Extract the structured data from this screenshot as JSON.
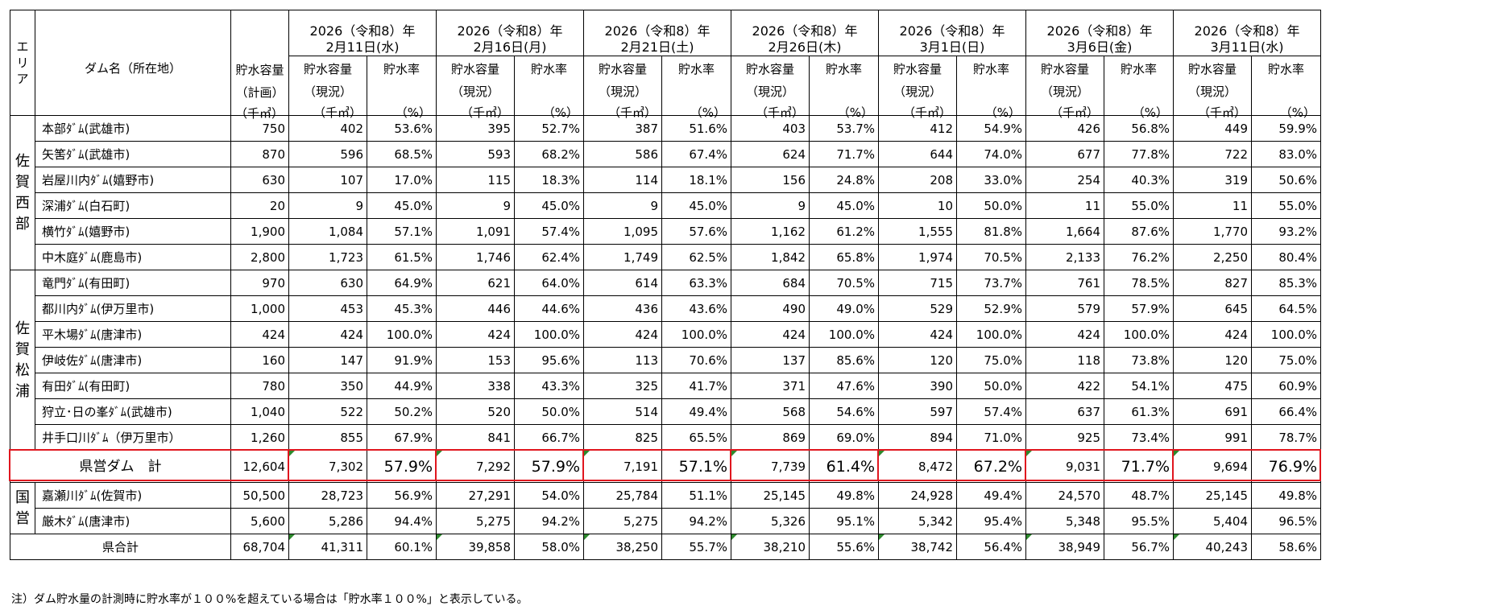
{
  "header": {
    "area": "エリア",
    "dam_name": "ダム名（所在地）",
    "plan_capacity": [
      "貯水容量",
      "（計画）",
      "（千㎥）"
    ],
    "current_capacity": [
      "貯水容量",
      "（現況）",
      "（千㎥）"
    ],
    "rate": [
      "貯水率",
      "（%）"
    ],
    "dates": [
      {
        "year": "2026（令和8）年",
        "day": "2月11日(水)"
      },
      {
        "year": "2026（令和8）年",
        "day": "2月16日(月)"
      },
      {
        "year": "2026（令和8）年",
        "day": "2月21日(土)"
      },
      {
        "year": "2026（令和8）年",
        "day": "2月26日(木)"
      },
      {
        "year": "2026（令和8）年",
        "day": "3月1日(日)"
      },
      {
        "year": "2026（令和8）年",
        "day": "3月6日(金)"
      },
      {
        "year": "2026（令和8）年",
        "day": "3月11日(水)"
      }
    ]
  },
  "areas": [
    {
      "label": [
        "佐",
        "賀",
        "西",
        "部"
      ],
      "rows": [
        {
          "name": "本部ﾀﾞﾑ(武雄市)",
          "plan": "750",
          "values": [
            "402",
            "53.6%",
            "395",
            "52.7%",
            "387",
            "51.6%",
            "403",
            "53.7%",
            "412",
            "54.9%",
            "426",
            "56.8%",
            "449",
            "59.9%"
          ]
        },
        {
          "name": "矢筈ﾀﾞﾑ(武雄市)",
          "plan": "870",
          "values": [
            "596",
            "68.5%",
            "593",
            "68.2%",
            "586",
            "67.4%",
            "624",
            "71.7%",
            "644",
            "74.0%",
            "677",
            "77.8%",
            "722",
            "83.0%"
          ]
        },
        {
          "name": "岩屋川内ﾀﾞﾑ(嬉野市)",
          "plan": "630",
          "values": [
            "107",
            "17.0%",
            "115",
            "18.3%",
            "114",
            "18.1%",
            "156",
            "24.8%",
            "208",
            "33.0%",
            "254",
            "40.3%",
            "319",
            "50.6%"
          ]
        },
        {
          "name": "深浦ﾀﾞﾑ(白石町)",
          "plan": "20",
          "values": [
            "9",
            "45.0%",
            "9",
            "45.0%",
            "9",
            "45.0%",
            "9",
            "45.0%",
            "10",
            "50.0%",
            "11",
            "55.0%",
            "11",
            "55.0%"
          ]
        },
        {
          "name": "横竹ﾀﾞﾑ(嬉野市)",
          "plan": "1,900",
          "values": [
            "1,084",
            "57.1%",
            "1,091",
            "57.4%",
            "1,095",
            "57.6%",
            "1,162",
            "61.2%",
            "1,555",
            "81.8%",
            "1,664",
            "87.6%",
            "1,770",
            "93.2%"
          ]
        },
        {
          "name": "中木庭ﾀﾞﾑ(鹿島市)",
          "plan": "2,800",
          "values": [
            "1,723",
            "61.5%",
            "1,746",
            "62.4%",
            "1,749",
            "62.5%",
            "1,842",
            "65.8%",
            "1,974",
            "70.5%",
            "2,133",
            "76.2%",
            "2,250",
            "80.4%"
          ]
        }
      ]
    },
    {
      "label": [
        "佐",
        "賀",
        "松",
        "浦"
      ],
      "rows": [
        {
          "name": "竜門ﾀﾞﾑ(有田町)",
          "plan": "970",
          "values": [
            "630",
            "64.9%",
            "621",
            "64.0%",
            "614",
            "63.3%",
            "684",
            "70.5%",
            "715",
            "73.7%",
            "761",
            "78.5%",
            "827",
            "85.3%"
          ]
        },
        {
          "name": "都川内ﾀﾞﾑ(伊万里市)",
          "plan": "1,000",
          "values": [
            "453",
            "45.3%",
            "446",
            "44.6%",
            "436",
            "43.6%",
            "490",
            "49.0%",
            "529",
            "52.9%",
            "579",
            "57.9%",
            "645",
            "64.5%"
          ]
        },
        {
          "name": "平木場ﾀﾞﾑ(唐津市)",
          "plan": "424",
          "values": [
            "424",
            "100.0%",
            "424",
            "100.0%",
            "424",
            "100.0%",
            "424",
            "100.0%",
            "424",
            "100.0%",
            "424",
            "100.0%",
            "424",
            "100.0%"
          ]
        },
        {
          "name": "伊岐佐ﾀﾞﾑ(唐津市)",
          "plan": "160",
          "values": [
            "147",
            "91.9%",
            "153",
            "95.6%",
            "113",
            "70.6%",
            "137",
            "85.6%",
            "120",
            "75.0%",
            "118",
            "73.8%",
            "120",
            "75.0%"
          ]
        },
        {
          "name": "有田ﾀﾞﾑ(有田町)",
          "plan": "780",
          "values": [
            "350",
            "44.9%",
            "338",
            "43.3%",
            "325",
            "41.7%",
            "371",
            "47.6%",
            "390",
            "50.0%",
            "422",
            "54.1%",
            "475",
            "60.9%"
          ]
        },
        {
          "name": "狩立･日の峯ﾀﾞﾑ(武雄市)",
          "plan": "1,040",
          "values": [
            "522",
            "50.2%",
            "520",
            "50.0%",
            "514",
            "49.4%",
            "568",
            "54.6%",
            "597",
            "57.4%",
            "637",
            "61.3%",
            "691",
            "66.4%"
          ]
        },
        {
          "name": "井手口川ﾀﾞﾑ（伊万里市）",
          "plan": "1,260",
          "values": [
            "855",
            "67.9%",
            "841",
            "66.7%",
            "825",
            "65.5%",
            "869",
            "69.0%",
            "894",
            "71.0%",
            "925",
            "73.4%",
            "991",
            "78.7%"
          ]
        }
      ]
    }
  ],
  "prefectural_total": {
    "name": "県営ダム　計",
    "plan": "12,604",
    "values": [
      "7,302",
      "57.9%",
      "7,292",
      "57.9%",
      "7,191",
      "57.1%",
      "7,739",
      "61.4%",
      "8,472",
      "67.2%",
      "9,031",
      "71.7%",
      "9,694",
      "76.9%"
    ]
  },
  "national": {
    "label": [
      "国",
      "営"
    ],
    "rows": [
      {
        "name": "嘉瀬川ﾀﾞﾑ(佐賀市)",
        "plan": "50,500",
        "values": [
          "28,723",
          "56.9%",
          "27,291",
          "54.0%",
          "25,784",
          "51.1%",
          "25,145",
          "49.8%",
          "24,928",
          "49.4%",
          "24,570",
          "48.7%",
          "25,145",
          "49.8%"
        ]
      },
      {
        "name": "厳木ﾀﾞﾑ(唐津市)",
        "plan": "5,600",
        "values": [
          "5,286",
          "94.4%",
          "5,275",
          "94.2%",
          "5,275",
          "94.2%",
          "5,326",
          "95.1%",
          "5,342",
          "95.4%",
          "5,348",
          "95.5%",
          "5,404",
          "96.5%"
        ]
      }
    ]
  },
  "grand_total": {
    "name": "県合計",
    "plan": "68,704",
    "values": [
      "41,311",
      "60.1%",
      "39,858",
      "58.0%",
      "38,250",
      "55.7%",
      "38,210",
      "55.6%",
      "38,742",
      "56.4%",
      "38,949",
      "56.7%",
      "40,243",
      "58.6%"
    ]
  },
  "footnote": "注）ダム貯水量の計測時に貯水率が１００%を超えている場合は「貯水率１００%」と表示している。",
  "colors": {
    "highlight_border": "#e0161e",
    "cell_marker": "#2d8a2d"
  }
}
